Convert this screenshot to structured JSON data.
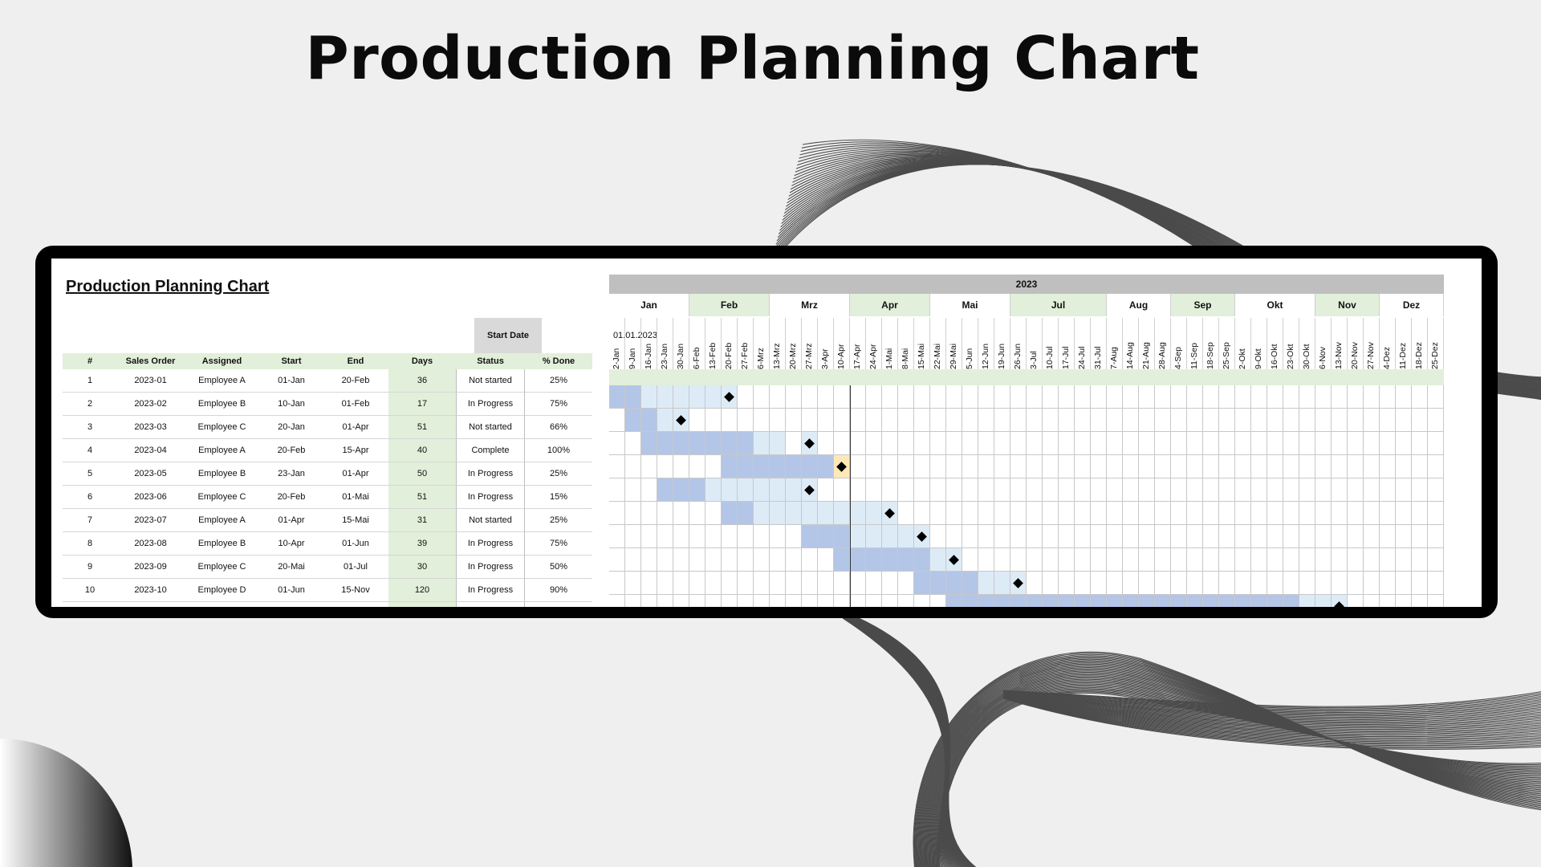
{
  "slide_title": "Production Planning Chart",
  "sheet": {
    "title": "Production Planning Chart",
    "start_date_label": "Start Date",
    "start_date_value": "01.01.2023",
    "columns": [
      "#",
      "Sales Order",
      "Assigned",
      "Start",
      "End",
      "Days",
      "Status",
      "% Done"
    ],
    "rows": [
      {
        "n": "1",
        "order": "2023-01",
        "assigned": "Employee A",
        "start": "01-Jan",
        "end": "20-Feb",
        "days": "36",
        "status": "Not started",
        "done": "25%"
      },
      {
        "n": "2",
        "order": "2023-02",
        "assigned": "Employee B",
        "start": "10-Jan",
        "end": "01-Feb",
        "days": "17",
        "status": "In Progress",
        "done": "75%"
      },
      {
        "n": "3",
        "order": "2023-03",
        "assigned": "Employee C",
        "start": "20-Jan",
        "end": "01-Apr",
        "days": "51",
        "status": "Not started",
        "done": "66%"
      },
      {
        "n": "4",
        "order": "2023-04",
        "assigned": "Employee A",
        "start": "20-Feb",
        "end": "15-Apr",
        "days": "40",
        "status": "Complete",
        "done": "100%"
      },
      {
        "n": "5",
        "order": "2023-05",
        "assigned": "Employee B",
        "start": "23-Jan",
        "end": "01-Apr",
        "days": "50",
        "status": "In Progress",
        "done": "25%"
      },
      {
        "n": "6",
        "order": "2023-06",
        "assigned": "Employee C",
        "start": "20-Feb",
        "end": "01-Mai",
        "days": "51",
        "status": "In Progress",
        "done": "15%"
      },
      {
        "n": "7",
        "order": "2023-07",
        "assigned": "Employee A",
        "start": "01-Apr",
        "end": "15-Mai",
        "days": "31",
        "status": "Not started",
        "done": "25%"
      },
      {
        "n": "8",
        "order": "2023-08",
        "assigned": "Employee B",
        "start": "10-Apr",
        "end": "01-Jun",
        "days": "39",
        "status": "In Progress",
        "done": "75%"
      },
      {
        "n": "9",
        "order": "2023-09",
        "assigned": "Employee C",
        "start": "20-Mai",
        "end": "01-Jul",
        "days": "30",
        "status": "In Progress",
        "done": "50%"
      },
      {
        "n": "10",
        "order": "2023-10",
        "assigned": "Employee D",
        "start": "01-Jun",
        "end": "15-Nov",
        "days": "120",
        "status": "In Progress",
        "done": "90%"
      }
    ]
  },
  "gantt": {
    "year": "2023",
    "months": [
      {
        "label": "Jan",
        "weeks": 5,
        "shaded": false
      },
      {
        "label": "Feb",
        "weeks": 5,
        "shaded": true
      },
      {
        "label": "Mrz",
        "weeks": 5,
        "shaded": false
      },
      {
        "label": "Apr",
        "weeks": 5,
        "shaded": true
      },
      {
        "label": "Mai",
        "weeks": 5,
        "shaded": false
      },
      {
        "label": "Jul",
        "weeks": 6,
        "shaded": true
      },
      {
        "label": "Aug",
        "weeks": 4,
        "shaded": false
      },
      {
        "label": "Sep",
        "weeks": 4,
        "shaded": true
      },
      {
        "label": "Okt",
        "weeks": 5,
        "shaded": false
      },
      {
        "label": "Nov",
        "weeks": 4,
        "shaded": true
      },
      {
        "label": "Dez",
        "weeks": 4,
        "shaded": false
      }
    ],
    "weeks": [
      "2-Jan",
      "9-Jan",
      "16-Jan",
      "23-Jan",
      "30-Jan",
      "6-Feb",
      "13-Feb",
      "20-Feb",
      "27-Feb",
      "6-Mrz",
      "13-Mrz",
      "20-Mrz",
      "27-Mrz",
      "3-Apr",
      "10-Apr",
      "17-Apr",
      "24-Apr",
      "1-Mai",
      "8-Mai",
      "15-Mai",
      "22-Mai",
      "29-Mai",
      "5-Jun",
      "12-Jun",
      "19-Jun",
      "26-Jun",
      "3-Jul",
      "10-Jul",
      "17-Jul",
      "24-Jul",
      "31-Jul",
      "7-Aug",
      "14-Aug",
      "21-Aug",
      "28-Aug",
      "4-Sep",
      "11-Sep",
      "18-Sep",
      "25-Sep",
      "2-Okt",
      "9-Okt",
      "16-Okt",
      "23-Okt",
      "30-Okt",
      "6-Nov",
      "13-Nov",
      "20-Nov",
      "27-Nov",
      "4-Dez",
      "11-Dez",
      "18-Dez",
      "25-Dez"
    ],
    "today_week": 15,
    "bars": [
      {
        "start": 0,
        "dark": 2,
        "light": 5,
        "milestone": 7,
        "milestone_color": "black"
      },
      {
        "start": 1,
        "dark": 2,
        "light": 1,
        "milestone": 4,
        "milestone_color": "black"
      },
      {
        "start": 2,
        "dark": 7,
        "light": 2,
        "milestone": 12,
        "milestone_color": "black"
      },
      {
        "start": 7,
        "dark": 7,
        "light": 0,
        "milestone": 14,
        "milestone_color": "black",
        "milestone_bg": "#fde9b7"
      },
      {
        "start": 3,
        "dark": 3,
        "light": 6,
        "milestone": 12,
        "milestone_color": "black"
      },
      {
        "start": 7,
        "dark": 2,
        "light": 8,
        "milestone": 17,
        "milestone_color": "black"
      },
      {
        "start": 12,
        "dark": 3,
        "light": 4,
        "milestone": 19,
        "milestone_color": "black"
      },
      {
        "start": 14,
        "dark": 6,
        "light": 1,
        "milestone": 21,
        "milestone_color": "black"
      },
      {
        "start": 19,
        "dark": 4,
        "light": 2,
        "milestone": 25,
        "milestone_color": "black"
      },
      {
        "start": 21,
        "dark": 22,
        "light": 2,
        "milestone": 45,
        "milestone_color": "black"
      }
    ],
    "colors": {
      "dark": "#b4c6e7",
      "light": "#ddebf7",
      "band": "#e2efda"
    }
  }
}
